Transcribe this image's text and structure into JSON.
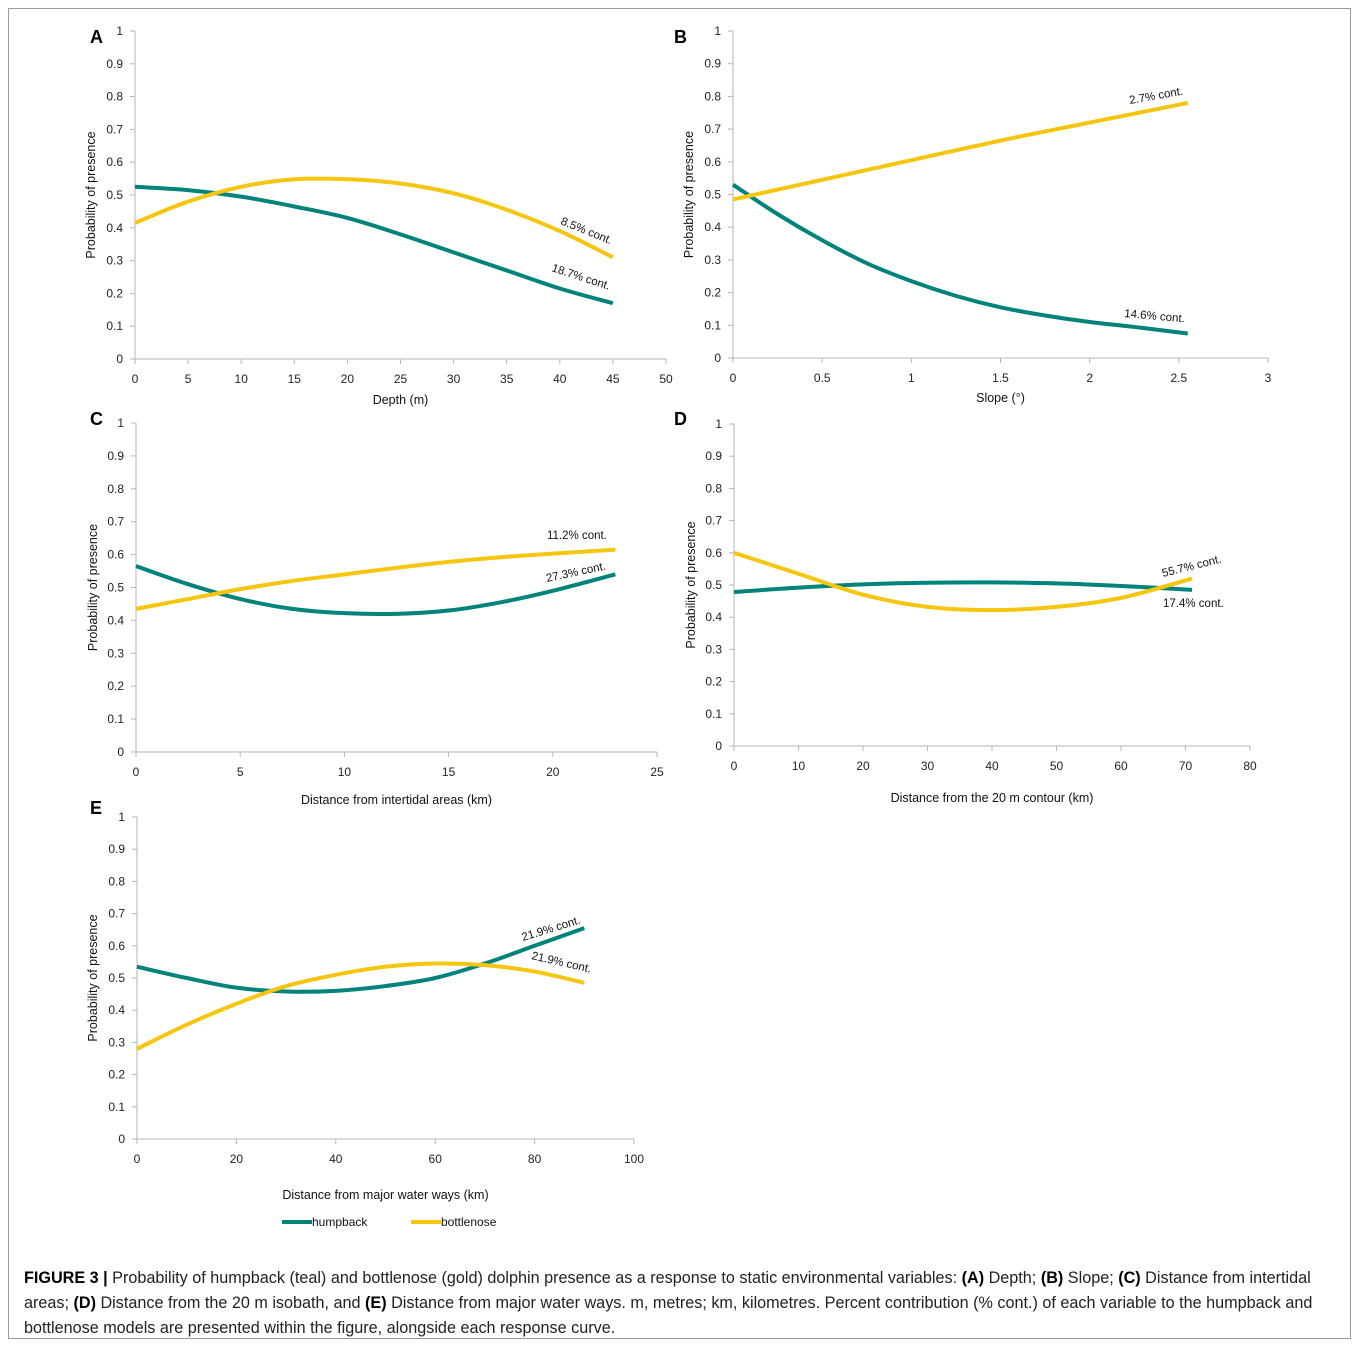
{
  "colors": {
    "humpback": "#00837a",
    "bottlenose": "#f5c60d"
  },
  "legend": {
    "items": [
      {
        "key": "humpback",
        "label": "humpback"
      },
      {
        "key": "bottlenose",
        "label": "bottlenose"
      }
    ]
  },
  "caption": {
    "figure_label": "FIGURE 3 |",
    "segments": [
      {
        "text": " Probability of humpback (teal) and bottlenose (gold) dolphin presence as a response to static environmental variables: ",
        "bold": false
      },
      {
        "text": "(A)",
        "bold": true
      },
      {
        "text": " Depth; ",
        "bold": false
      },
      {
        "text": "(B)",
        "bold": true
      },
      {
        "text": " Slope; ",
        "bold": false
      },
      {
        "text": "(C)",
        "bold": true
      },
      {
        "text": " Distance from intertidal areas; ",
        "bold": false
      },
      {
        "text": "(D)",
        "bold": true
      },
      {
        "text": " Distance from the 20 m isobath, and ",
        "bold": false
      },
      {
        "text": "(E)",
        "bold": true
      },
      {
        "text": " Distance from major water ways. m, metres; km, kilometres. Percent contribution (% cont.) of each variable to the humpback and bottlenose models are presented within the figure, alongside each response curve.",
        "bold": false
      }
    ]
  },
  "chart_data": [
    {
      "panel": "A",
      "type": "line",
      "xlabel": "Depth (m)",
      "ylabel": "Probability of presence",
      "xlim": [
        0,
        50
      ],
      "ylim": [
        0,
        1
      ],
      "xticks": [
        "0",
        "5",
        "10",
        "15",
        "20",
        "25",
        "30",
        "35",
        "40",
        "45",
        "50"
      ],
      "yticks": [
        "0",
        "0.1",
        "0.2",
        "0.3",
        "0.4",
        "0.5",
        "0.6",
        "0.7",
        "0.8",
        "0.9",
        "1"
      ],
      "grid": false,
      "series": [
        {
          "name": "humpback",
          "x": [
            0,
            5,
            10,
            15,
            20,
            25,
            30,
            35,
            40,
            45
          ],
          "y": [
            0.525,
            0.515,
            0.495,
            0.465,
            0.43,
            0.38,
            0.325,
            0.27,
            0.215,
            0.17
          ]
        },
        {
          "name": "bottlenose",
          "x": [
            0,
            5,
            10,
            15,
            20,
            25,
            30,
            35,
            40,
            45
          ],
          "y": [
            0.415,
            0.48,
            0.525,
            0.548,
            0.548,
            0.535,
            0.505,
            0.455,
            0.39,
            0.31
          ]
        }
      ],
      "annotations": [
        {
          "series": "bottlenose",
          "text": "8.5% cont."
        },
        {
          "series": "humpback",
          "text": "18.7% cont."
        }
      ]
    },
    {
      "panel": "B",
      "type": "line",
      "xlabel": "Slope (°)",
      "ylabel": "Probability of presence",
      "xlim": [
        0,
        3
      ],
      "ylim": [
        0,
        1
      ],
      "xticks": [
        "0",
        "0.5",
        "1",
        "1.5",
        "2",
        "2.5",
        "3"
      ],
      "yticks": [
        "0",
        "0.1",
        "0.2",
        "0.3",
        "0.4",
        "0.5",
        "0.6",
        "0.7",
        "0.8",
        "0.9",
        "1"
      ],
      "grid": false,
      "series": [
        {
          "name": "humpback",
          "x": [
            0,
            0.25,
            0.5,
            0.75,
            1,
            1.25,
            1.5,
            1.75,
            2,
            2.25,
            2.55
          ],
          "y": [
            0.53,
            0.44,
            0.36,
            0.29,
            0.235,
            0.19,
            0.155,
            0.13,
            0.11,
            0.095,
            0.075
          ]
        },
        {
          "name": "bottlenose",
          "x": [
            0,
            0.5,
            1,
            1.5,
            2,
            2.55
          ],
          "y": [
            0.485,
            0.545,
            0.605,
            0.665,
            0.72,
            0.78
          ]
        }
      ],
      "annotations": [
        {
          "series": "bottlenose",
          "text": "2.7% cont."
        },
        {
          "series": "humpback",
          "text": "14.6% cont."
        }
      ]
    },
    {
      "panel": "C",
      "type": "line",
      "xlabel": "Distance from intertidal areas (km)",
      "ylabel": "Probability of presence",
      "xlim": [
        0,
        25
      ],
      "ylim": [
        0,
        1
      ],
      "xticks": [
        "0",
        "5",
        "10",
        "15",
        "20",
        "25"
      ],
      "yticks": [
        "0",
        "0.1",
        "0.2",
        "0.3",
        "0.4",
        "0.5",
        "0.6",
        "0.7",
        "0.8",
        "0.9",
        "1"
      ],
      "grid": false,
      "series": [
        {
          "name": "humpback",
          "x": [
            0,
            2.5,
            5,
            7.5,
            10,
            12.5,
            15,
            17.5,
            20,
            23
          ],
          "y": [
            0.565,
            0.51,
            0.465,
            0.435,
            0.422,
            0.42,
            0.43,
            0.455,
            0.49,
            0.54
          ]
        },
        {
          "name": "bottlenose",
          "x": [
            0,
            2.5,
            5,
            7.5,
            10,
            12.5,
            15,
            17.5,
            20,
            23
          ],
          "y": [
            0.435,
            0.465,
            0.495,
            0.52,
            0.54,
            0.56,
            0.578,
            0.592,
            0.603,
            0.615
          ]
        }
      ],
      "annotations": [
        {
          "series": "bottlenose",
          "text": "11.2% cont."
        },
        {
          "series": "humpback",
          "text": "27.3% cont."
        }
      ]
    },
    {
      "panel": "D",
      "type": "line",
      "xlabel": "Distance from the 20 m contour (km)",
      "ylabel": "Probability of presence",
      "xlim": [
        0,
        80
      ],
      "ylim": [
        0,
        1
      ],
      "xticks": [
        "0",
        "10",
        "20",
        "30",
        "40",
        "50",
        "60",
        "70",
        "80"
      ],
      "yticks": [
        "0",
        "0.1",
        "0.2",
        "0.3",
        "0.4",
        "0.5",
        "0.6",
        "0.7",
        "0.8",
        "0.9",
        "1"
      ],
      "grid": false,
      "series": [
        {
          "name": "humpback",
          "x": [
            0,
            10,
            20,
            30,
            40,
            50,
            60,
            71
          ],
          "y": [
            0.478,
            0.492,
            0.502,
            0.507,
            0.508,
            0.505,
            0.497,
            0.485
          ]
        },
        {
          "name": "bottlenose",
          "x": [
            0,
            10,
            20,
            30,
            40,
            50,
            60,
            71
          ],
          "y": [
            0.6,
            0.535,
            0.47,
            0.432,
            0.422,
            0.432,
            0.46,
            0.52
          ]
        }
      ],
      "annotations": [
        {
          "series": "bottlenose",
          "text": "55.7% cont."
        },
        {
          "series": "humpback",
          "text": "17.4% cont."
        }
      ]
    },
    {
      "panel": "E",
      "type": "line",
      "xlabel": "Distance from major water ways (km)",
      "ylabel": "Probability of presence",
      "xlim": [
        0,
        100
      ],
      "ylim": [
        0,
        1
      ],
      "xticks": [
        "0",
        "20",
        "40",
        "60",
        "80",
        "100"
      ],
      "yticks": [
        "0",
        "0.1",
        "0.2",
        "0.3",
        "0.4",
        "0.5",
        "0.6",
        "0.7",
        "0.8",
        "0.9",
        "1"
      ],
      "grid": false,
      "series": [
        {
          "name": "humpback",
          "x": [
            0,
            10,
            20,
            30,
            40,
            50,
            60,
            70,
            80,
            90
          ],
          "y": [
            0.535,
            0.5,
            0.47,
            0.458,
            0.46,
            0.475,
            0.5,
            0.545,
            0.6,
            0.655
          ]
        },
        {
          "name": "bottlenose",
          "x": [
            0,
            10,
            20,
            30,
            40,
            50,
            60,
            70,
            80,
            90
          ],
          "y": [
            0.28,
            0.355,
            0.42,
            0.475,
            0.51,
            0.535,
            0.545,
            0.54,
            0.52,
            0.485
          ]
        }
      ],
      "annotations": [
        {
          "series": "humpback",
          "text": "21.9% cont."
        },
        {
          "series": "bottlenose",
          "text": "21.9% cont."
        }
      ]
    }
  ]
}
